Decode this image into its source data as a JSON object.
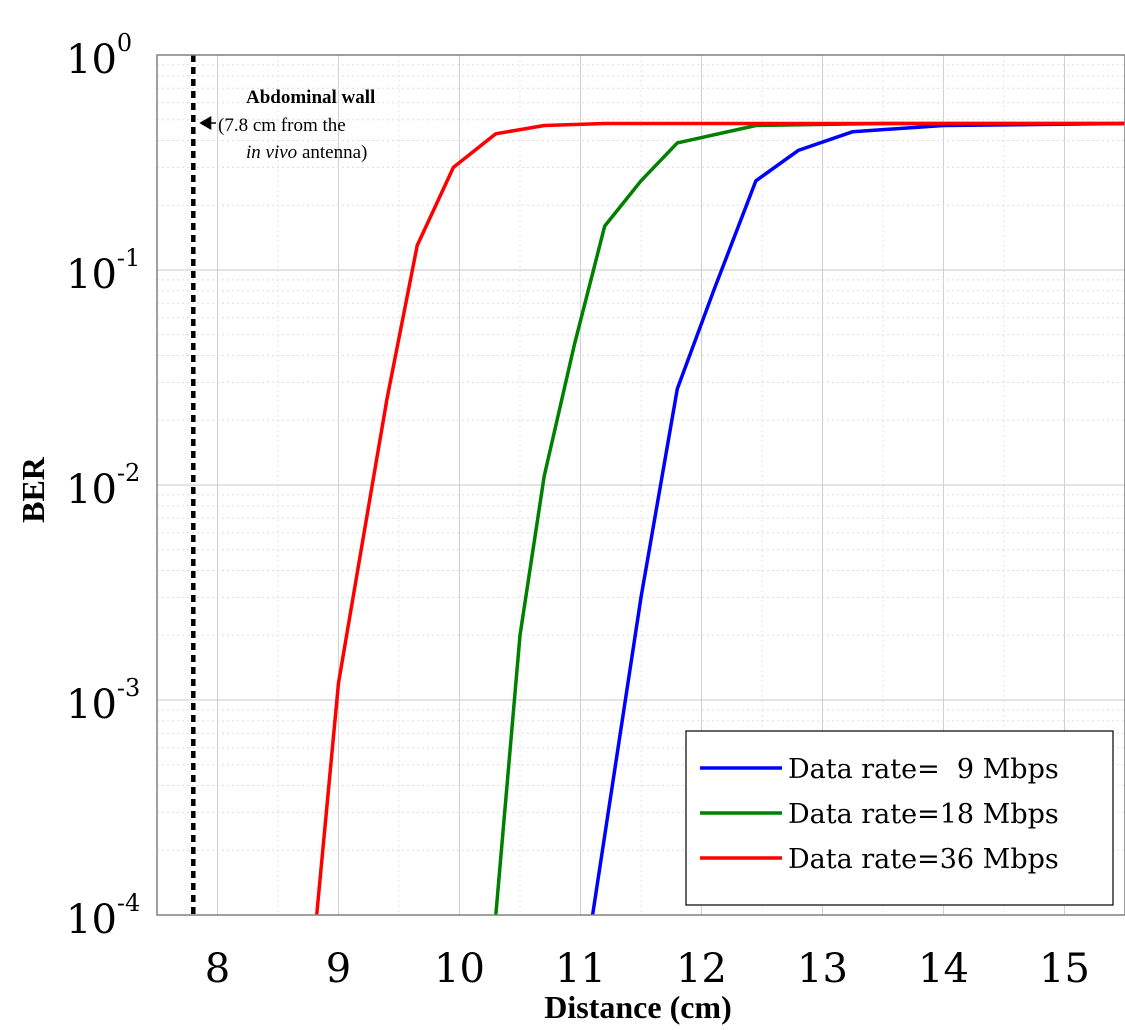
{
  "chart_data": {
    "type": "line",
    "title": "",
    "xlabel": "Distance (cm)",
    "ylabel": "BER",
    "xlim": [
      7.5,
      15.5
    ],
    "ylim": [
      0.0001,
      1
    ],
    "yscale": "log",
    "grid": true,
    "legend_position": "bottom-right",
    "x_ticks": [
      "8",
      "9",
      "10",
      "11",
      "12",
      "13",
      "14",
      "15"
    ],
    "y_ticks": [
      {
        "base": "10",
        "exp": "0"
      },
      {
        "base": "10",
        "exp": "-1"
      },
      {
        "base": "10",
        "exp": "-2"
      },
      {
        "base": "10",
        "exp": "-3"
      },
      {
        "base": "10",
        "exp": "-4"
      }
    ],
    "series": [
      {
        "name": "Data rate=  9 Mbps",
        "color": "#0000ff",
        "x": [
          11.1,
          11.5,
          11.8,
          12.1,
          12.45,
          12.8,
          13.25,
          14.0,
          15.5
        ],
        "y": [
          0.0001,
          0.003,
          0.028,
          0.08,
          0.26,
          0.36,
          0.44,
          0.47,
          0.48
        ]
      },
      {
        "name": "Data rate=18 Mbps",
        "color": "#008000",
        "x": [
          10.3,
          10.5,
          10.7,
          10.95,
          11.2,
          11.5,
          11.8,
          12.45,
          13.5,
          15.5
        ],
        "y": [
          0.0001,
          0.002,
          0.011,
          0.045,
          0.16,
          0.26,
          0.39,
          0.47,
          0.48,
          0.48
        ]
      },
      {
        "name": "Data rate=36 Mbps",
        "color": "#ff0000",
        "x": [
          8.82,
          9.0,
          9.2,
          9.4,
          9.65,
          9.95,
          10.3,
          10.7,
          11.2,
          12.0,
          15.5
        ],
        "y": [
          0.0001,
          0.0012,
          0.0055,
          0.025,
          0.13,
          0.3,
          0.43,
          0.47,
          0.48,
          0.48,
          0.48
        ]
      }
    ],
    "vertical_marker": {
      "x": 7.8,
      "style": "dashed",
      "color": "#000000"
    },
    "annotation": {
      "line1": "Abdominal wall",
      "line2": "(7.8 cm from the",
      "line3_italic": "in vivo",
      "line3_rest": " antenna)"
    }
  }
}
